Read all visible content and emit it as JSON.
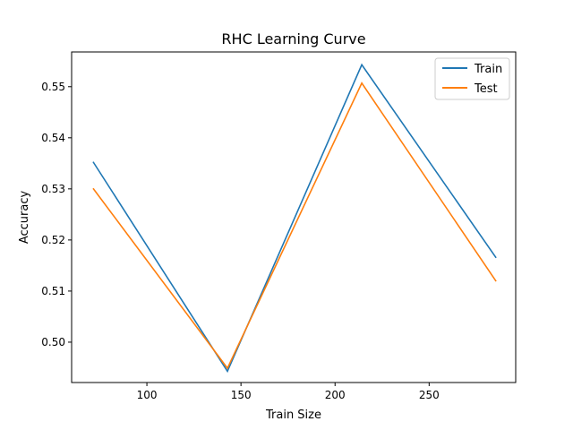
{
  "chart_data": {
    "type": "line",
    "title": "RHC Learning Curve",
    "xlabel": "Train Size",
    "ylabel": "Accuracy",
    "xlim": [
      60,
      296
    ],
    "ylim": [
      0.4921,
      0.5568
    ],
    "xticks": [
      100,
      150,
      200,
      250
    ],
    "xtick_labels": [
      "100",
      "150",
      "200",
      "250"
    ],
    "yticks": [
      0.5,
      0.51,
      0.52,
      0.53,
      0.54,
      0.55
    ],
    "ytick_labels": [
      "0.50",
      "0.51",
      "0.52",
      "0.53",
      "0.54",
      "0.55"
    ],
    "grid": false,
    "legend_position": "top-right",
    "x": [
      71.4,
      142.8,
      214.2,
      285.6
    ],
    "series": [
      {
        "name": "Train",
        "color": "#1f77b4",
        "values": [
          0.5353,
          0.4943,
          0.5543,
          0.5165
        ]
      },
      {
        "name": "Test",
        "color": "#ff7f0e",
        "values": [
          0.5301,
          0.4949,
          0.5507,
          0.5119
        ]
      }
    ]
  }
}
